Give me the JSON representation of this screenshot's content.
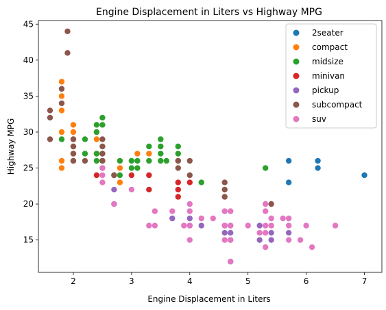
{
  "chart_data": {
    "type": "scatter",
    "title": "Engine Displacement in Liters vs Highway MPG",
    "xlabel": "Engine Displacement in Liters",
    "ylabel": "Highway MPG",
    "xlim": [
      1.4,
      7.3
    ],
    "ylim": [
      10.5,
      45.5
    ],
    "xticks": [
      2,
      3,
      4,
      5,
      6,
      7
    ],
    "yticks": [
      15,
      20,
      25,
      30,
      35,
      40,
      45
    ],
    "grid": false,
    "legend_position": "top-right",
    "series": [
      {
        "name": "2seater",
        "color": "#1f77b4",
        "points": [
          [
            5.7,
            26
          ],
          [
            5.7,
            23
          ],
          [
            6.2,
            26
          ],
          [
            6.2,
            25
          ],
          [
            7.0,
            24
          ]
        ]
      },
      {
        "name": "compact",
        "color": "#ff7f0e",
        "points": [
          [
            1.8,
            37
          ],
          [
            1.8,
            35
          ],
          [
            1.8,
            33
          ],
          [
            1.8,
            30
          ],
          [
            1.8,
            26
          ],
          [
            1.8,
            25
          ],
          [
            2.0,
            31
          ],
          [
            2.0,
            30
          ],
          [
            2.0,
            29
          ],
          [
            2.0,
            28
          ],
          [
            2.0,
            27
          ],
          [
            2.0,
            26
          ],
          [
            2.4,
            29
          ],
          [
            2.4,
            27
          ],
          [
            2.5,
            26
          ],
          [
            2.8,
            25
          ],
          [
            2.8,
            23
          ],
          [
            3.1,
            27
          ],
          [
            3.3,
            27
          ],
          [
            2.4,
            30
          ],
          [
            2.8,
            26
          ]
        ]
      },
      {
        "name": "midsize",
        "color": "#2ca02c",
        "points": [
          [
            1.8,
            29
          ],
          [
            2.2,
            29
          ],
          [
            2.2,
            27
          ],
          [
            2.4,
            31
          ],
          [
            2.4,
            30
          ],
          [
            2.4,
            27
          ],
          [
            2.4,
            26
          ],
          [
            2.5,
            32
          ],
          [
            2.5,
            31
          ],
          [
            2.5,
            27
          ],
          [
            2.5,
            26
          ],
          [
            2.7,
            24
          ],
          [
            2.8,
            26
          ],
          [
            2.8,
            24
          ],
          [
            3.0,
            26
          ],
          [
            3.0,
            25
          ],
          [
            3.1,
            26
          ],
          [
            3.1,
            25
          ],
          [
            3.3,
            28
          ],
          [
            3.3,
            26
          ],
          [
            3.5,
            29
          ],
          [
            3.5,
            28
          ],
          [
            3.5,
            27
          ],
          [
            3.5,
            26
          ],
          [
            3.6,
            26
          ],
          [
            3.8,
            28
          ],
          [
            3.8,
            27
          ],
          [
            3.8,
            26
          ],
          [
            4.2,
            23
          ],
          [
            5.3,
            25
          ]
        ]
      },
      {
        "name": "minivan",
        "color": "#d62728",
        "points": [
          [
            2.4,
            24
          ],
          [
            3.0,
            24
          ],
          [
            3.3,
            24
          ],
          [
            3.3,
            22
          ],
          [
            3.8,
            23
          ],
          [
            3.8,
            22
          ],
          [
            3.8,
            21
          ],
          [
            4.0,
            23
          ]
        ]
      },
      {
        "name": "pickup",
        "color": "#9467bd",
        "points": [
          [
            2.7,
            22
          ],
          [
            2.7,
            20
          ],
          [
            3.7,
            18
          ],
          [
            4.0,
            18
          ],
          [
            4.0,
            17
          ],
          [
            4.2,
            17
          ],
          [
            4.6,
            17
          ],
          [
            4.6,
            16
          ],
          [
            4.7,
            17
          ],
          [
            4.7,
            16
          ],
          [
            4.7,
            15
          ],
          [
            4.7,
            12
          ],
          [
            5.2,
            17
          ],
          [
            5.2,
            15
          ],
          [
            5.4,
            16
          ],
          [
            5.4,
            15
          ],
          [
            5.7,
            16
          ]
        ]
      },
      {
        "name": "subcompact",
        "color": "#8c564b",
        "points": [
          [
            1.6,
            33
          ],
          [
            1.6,
            32
          ],
          [
            1.6,
            29
          ],
          [
            1.8,
            36
          ],
          [
            1.8,
            34
          ],
          [
            1.9,
            44
          ],
          [
            1.9,
            41
          ],
          [
            2.0,
            29
          ],
          [
            2.0,
            28
          ],
          [
            2.0,
            27
          ],
          [
            2.0,
            26
          ],
          [
            2.2,
            26
          ],
          [
            2.5,
            29
          ],
          [
            2.5,
            28
          ],
          [
            2.5,
            27
          ],
          [
            2.5,
            26
          ],
          [
            2.5,
            25
          ],
          [
            2.7,
            24
          ],
          [
            3.8,
            26
          ],
          [
            3.8,
            25
          ],
          [
            4.0,
            26
          ],
          [
            4.0,
            24
          ],
          [
            4.6,
            23
          ],
          [
            4.6,
            22
          ],
          [
            4.6,
            21
          ],
          [
            5.4,
            20
          ]
        ]
      },
      {
        "name": "suv",
        "color": "#e377c2",
        "points": [
          [
            2.5,
            25
          ],
          [
            2.5,
            24
          ],
          [
            2.5,
            23
          ],
          [
            2.7,
            20
          ],
          [
            3.0,
            22
          ],
          [
            3.3,
            17
          ],
          [
            3.4,
            19
          ],
          [
            3.4,
            17
          ],
          [
            3.7,
            19
          ],
          [
            3.9,
            17
          ],
          [
            4.0,
            20
          ],
          [
            4.0,
            19
          ],
          [
            4.0,
            17
          ],
          [
            4.0,
            15
          ],
          [
            4.2,
            18
          ],
          [
            4.4,
            18
          ],
          [
            4.6,
            19
          ],
          [
            4.6,
            17
          ],
          [
            4.6,
            15
          ],
          [
            4.7,
            19
          ],
          [
            4.7,
            17
          ],
          [
            4.7,
            15
          ],
          [
            4.7,
            12
          ],
          [
            5.0,
            17
          ],
          [
            5.2,
            16
          ],
          [
            5.3,
            20
          ],
          [
            5.3,
            19
          ],
          [
            5.3,
            17
          ],
          [
            5.3,
            16
          ],
          [
            5.3,
            14
          ],
          [
            5.4,
            18
          ],
          [
            5.4,
            17
          ],
          [
            5.6,
            18
          ],
          [
            5.7,
            18
          ],
          [
            5.7,
            17
          ],
          [
            5.7,
            15
          ],
          [
            5.9,
            15
          ],
          [
            6.0,
            17
          ],
          [
            6.1,
            14
          ],
          [
            6.5,
            17
          ]
        ]
      }
    ]
  }
}
